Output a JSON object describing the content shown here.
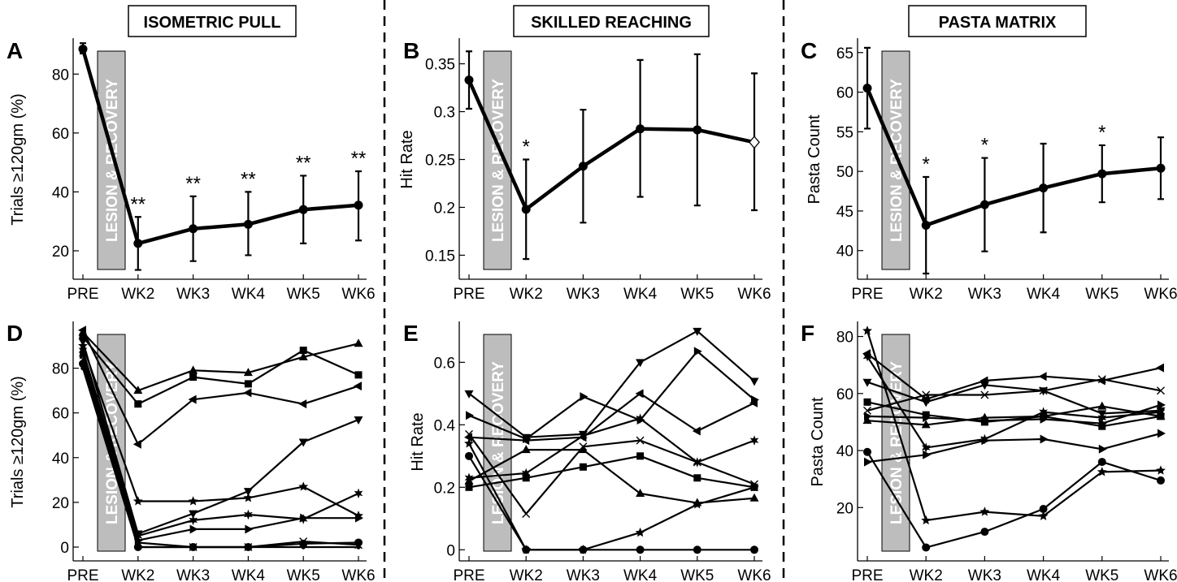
{
  "titles": [
    "ISOMETRIC PULL",
    "SKILLED REACHING",
    "PASTA MATRIX"
  ],
  "lesion_label": "LESION & RECOVERY",
  "chart_data": [
    {
      "panel": "A",
      "type": "line",
      "categories": [
        "PRE",
        "WK2",
        "WK3",
        "WK4",
        "WK5",
        "WK6"
      ],
      "ylabel": "Trials ≥120gm (%)",
      "ylim": [
        12,
        90
      ],
      "yticks": [
        20,
        40,
        60,
        80
      ],
      "series": [
        {
          "values": [
            88.5,
            22.5,
            27.5,
            29,
            34,
            35.5
          ],
          "err_low": [
            87,
            13.5,
            16.5,
            18.5,
            22.5,
            23.5
          ],
          "err_high": [
            90.5,
            31.5,
            38.5,
            40,
            45.5,
            47
          ],
          "markers": [
            "circle",
            "circle",
            "circle",
            "circle",
            "circle",
            "circle"
          ]
        }
      ],
      "significance": [
        null,
        "**",
        "**",
        "**",
        "**",
        "**"
      ]
    },
    {
      "panel": "B",
      "type": "line",
      "categories": [
        "PRE",
        "WK2",
        "WK3",
        "WK4",
        "WK5",
        "WK6"
      ],
      "ylabel": "Hit Rate",
      "ylim": [
        0.13,
        0.37
      ],
      "yticks": [
        "0.15",
        "0.2",
        "0.25",
        "0.3",
        "0.35"
      ],
      "series": [
        {
          "values": [
            0.333,
            0.198,
            0.243,
            0.282,
            0.281,
            0.268
          ],
          "err_low": [
            0.303,
            0.146,
            0.184,
            0.211,
            0.202,
            0.197
          ],
          "err_high": [
            0.363,
            0.25,
            0.302,
            0.354,
            0.36,
            0.34
          ],
          "markers": [
            "circle",
            "circle",
            "circle",
            "circle",
            "circle",
            "diamond-open"
          ]
        }
      ],
      "significance": [
        null,
        "*",
        null,
        null,
        null,
        null
      ]
    },
    {
      "panel": "C",
      "type": "line",
      "categories": [
        "PRE",
        "WK2",
        "WK3",
        "WK4",
        "WK5",
        "WK6"
      ],
      "ylabel": "Pasta Count",
      "ylim": [
        37,
        66
      ],
      "yticks": [
        40,
        45,
        50,
        55,
        60,
        65
      ],
      "series": [
        {
          "values": [
            60.5,
            43.2,
            45.8,
            47.9,
            49.7,
            50.4
          ],
          "err_low": [
            55.4,
            37.1,
            39.9,
            42.3,
            46.1,
            46.5
          ],
          "err_high": [
            65.6,
            49.3,
            51.7,
            53.5,
            53.3,
            54.3
          ],
          "markers": [
            "circle",
            "circle",
            "circle",
            "circle",
            "circle",
            "circle"
          ]
        }
      ],
      "significance": [
        null,
        "*",
        "*",
        null,
        "*",
        null
      ]
    },
    {
      "panel": "D",
      "type": "line",
      "categories": [
        "PRE",
        "WK2",
        "WK3",
        "WK4",
        "WK5",
        "WK6"
      ],
      "ylabel": "Trials ≥120gm (%)",
      "ylim": [
        -4,
        98
      ],
      "yticks": [
        0,
        20,
        40,
        60,
        80
      ],
      "series": [
        {
          "marker": "triangle-up",
          "values": [
            96,
            70,
            79,
            78,
            85,
            91
          ]
        },
        {
          "marker": "square",
          "values": [
            94,
            64,
            76,
            73,
            88,
            77
          ]
        },
        {
          "marker": "triangle-left",
          "values": [
            97,
            46,
            66,
            69,
            64,
            72
          ]
        },
        {
          "marker": "triangle-down",
          "values": [
            92,
            6,
            15,
            25,
            47,
            57
          ]
        },
        {
          "marker": "pentagram",
          "values": [
            90,
            20.5,
            20.5,
            22,
            27,
            14
          ]
        },
        {
          "marker": "hexagram",
          "values": [
            88,
            5,
            12,
            14.5,
            12.5,
            24
          ]
        },
        {
          "marker": "triangle-right",
          "values": [
            86,
            3,
            8,
            8,
            13,
            13
          ]
        },
        {
          "marker": "circle",
          "values": [
            82,
            0,
            0,
            0,
            1.5,
            2
          ]
        },
        {
          "marker": "x",
          "values": [
            84,
            2,
            0,
            0,
            2.5,
            1
          ]
        },
        {
          "marker": "dot",
          "values": [
            80,
            0,
            0,
            0,
            0,
            0
          ]
        }
      ]
    },
    {
      "panel": "E",
      "type": "line",
      "categories": [
        "PRE",
        "WK2",
        "WK3",
        "WK4",
        "WK5",
        "WK6"
      ],
      "ylabel": "Hit Rate",
      "ylim": [
        -0.02,
        0.71
      ],
      "yticks": [
        "0",
        "0.2",
        "0.4",
        "0.6"
      ],
      "series": [
        {
          "marker": "triangle-down",
          "values": [
            0.5,
            0.36,
            0.37,
            0.6,
            0.7,
            0.54
          ]
        },
        {
          "marker": "triangle-right",
          "values": [
            0.43,
            0.355,
            0.49,
            0.415,
            0.635,
            0.48
          ]
        },
        {
          "marker": "triangle-left",
          "values": [
            0.36,
            0.35,
            0.36,
            0.5,
            0.38,
            0.47
          ]
        },
        {
          "marker": "triangle-up",
          "values": [
            0.22,
            0.32,
            0.32,
            0.18,
            0.15,
            0.165
          ]
        },
        {
          "marker": "square",
          "values": [
            0.2,
            0.23,
            0.265,
            0.3,
            0.23,
            0.2
          ]
        },
        {
          "marker": "x",
          "values": [
            0.37,
            0.115,
            0.33,
            0.35,
            0.28,
            0.21
          ]
        },
        {
          "marker": "hexagram",
          "values": [
            0.23,
            0.245,
            0.365,
            0.42,
            0.28,
            0.35
          ]
        },
        {
          "marker": "pentagram",
          "values": [
            0.34,
            0.0,
            0.0,
            0.055,
            0.145,
            0.2
          ]
        },
        {
          "marker": "circle",
          "values": [
            0.3,
            0.0,
            0.0,
            0.0,
            0.0,
            0.0
          ]
        }
      ]
    },
    {
      "panel": "F",
      "type": "line",
      "categories": [
        "PRE",
        "WK2",
        "WK3",
        "WK4",
        "WK5",
        "WK6"
      ],
      "ylabel": "Pasta Count",
      "ylim": [
        3,
        83
      ],
      "yticks": [
        20,
        40,
        60,
        80
      ],
      "series": [
        {
          "marker": "pentagram",
          "values": [
            82,
            15.5,
            18.5,
            17,
            32.5,
            33
          ]
        },
        {
          "marker": "triangle-left",
          "values": [
            74,
            58,
            64.5,
            66,
            64.5,
            69
          ]
        },
        {
          "marker": "hexagram",
          "values": [
            73,
            41,
            44,
            53.5,
            51.5,
            53.5
          ]
        },
        {
          "marker": "triangle-down",
          "values": [
            64,
            57,
            63,
            61,
            53,
            54
          ]
        },
        {
          "marker": "square",
          "values": [
            57,
            52.5,
            50,
            52,
            48.5,
            52
          ]
        },
        {
          "marker": "x",
          "values": [
            54,
            59.5,
            59.5,
            61,
            65,
            61
          ]
        },
        {
          "marker": "triangle-up",
          "values": [
            50.5,
            49,
            51.5,
            52,
            55.5,
            52
          ]
        },
        {
          "marker": "triangle-right",
          "values": [
            36,
            38.5,
            43.5,
            44,
            40.5,
            46
          ]
        },
        {
          "marker": "circle",
          "values": [
            39.5,
            6,
            11.5,
            19.5,
            36,
            29.5
          ]
        },
        {
          "marker": "triangle-right",
          "values": [
            52,
            51.5,
            50.5,
            51,
            49.5,
            56
          ]
        }
      ]
    }
  ]
}
